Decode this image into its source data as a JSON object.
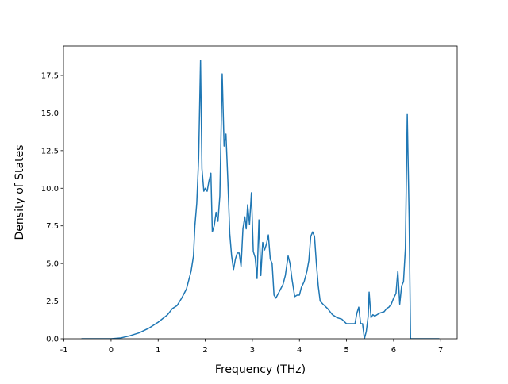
{
  "chart_data": {
    "type": "line",
    "x_label": "Frequency (THz)",
    "y_label": "Density of States",
    "x": [
      -0.63,
      0,
      0.2,
      0.4,
      0.6,
      0.8,
      1.0,
      1.2,
      1.3,
      1.4,
      1.5,
      1.6,
      1.7,
      1.75,
      1.78,
      1.82,
      1.86,
      1.9,
      1.93,
      1.97,
      2.0,
      2.04,
      2.08,
      2.12,
      2.15,
      2.19,
      2.23,
      2.27,
      2.31,
      2.36,
      2.4,
      2.44,
      2.48,
      2.52,
      2.56,
      2.6,
      2.64,
      2.68,
      2.72,
      2.76,
      2.8,
      2.84,
      2.87,
      2.9,
      2.94,
      2.98,
      3.02,
      3.06,
      3.1,
      3.14,
      3.18,
      3.22,
      3.26,
      3.3,
      3.34,
      3.38,
      3.42,
      3.46,
      3.5,
      3.55,
      3.6,
      3.65,
      3.7,
      3.76,
      3.8,
      3.84,
      3.9,
      3.95,
      4.0,
      4.04,
      4.1,
      4.16,
      4.2,
      4.24,
      4.28,
      4.32,
      4.36,
      4.4,
      4.44,
      4.5,
      4.6,
      4.7,
      4.8,
      4.9,
      5.0,
      5.1,
      5.18,
      5.22,
      5.26,
      5.3,
      5.34,
      5.38,
      5.42,
      5.46,
      5.48,
      5.52,
      5.56,
      5.6,
      5.65,
      5.7,
      5.8,
      5.85,
      5.9,
      5.95,
      6.0,
      6.05,
      6.09,
      6.13,
      6.17,
      6.21,
      6.25,
      6.29,
      6.33,
      6.36,
      6.97
    ],
    "series": [
      {
        "color": "#1f77b4",
        "values": [
          0,
          0,
          0.05,
          0.2,
          0.4,
          0.7,
          1.1,
          1.6,
          2.0,
          2.2,
          2.7,
          3.3,
          4.5,
          5.5,
          7.5,
          9.0,
          12.0,
          18.5,
          11.3,
          9.8,
          10.0,
          9.8,
          10.5,
          11.0,
          7.1,
          7.5,
          8.4,
          7.8,
          9.5,
          17.6,
          12.8,
          13.6,
          10.5,
          7.0,
          5.5,
          4.6,
          5.3,
          5.7,
          5.7,
          4.8,
          7.3,
          8.1,
          7.3,
          8.9,
          7.6,
          9.7,
          5.8,
          5.4,
          4.0,
          7.9,
          4.2,
          6.4,
          5.9,
          6.3,
          6.9,
          5.3,
          5.0,
          2.9,
          2.7,
          3.0,
          3.3,
          3.6,
          4.2,
          5.5,
          5.0,
          4.0,
          2.8,
          2.9,
          2.9,
          3.4,
          3.8,
          4.5,
          5.2,
          6.8,
          7.1,
          6.8,
          5.0,
          3.5,
          2.5,
          2.3,
          2.0,
          1.6,
          1.4,
          1.3,
          1.0,
          1.0,
          1.0,
          1.7,
          2.1,
          1.0,
          1.0,
          0,
          0.5,
          1.5,
          3.1,
          1.4,
          1.6,
          1.5,
          1.6,
          1.7,
          1.8,
          2.0,
          2.1,
          2.3,
          2.7,
          3.0,
          4.5,
          2.3,
          3.5,
          3.8,
          6.0,
          14.9,
          8.0,
          0,
          0
        ]
      }
    ],
    "xlim": [
      -1.01,
      7.35
    ],
    "ylim": [
      0,
      19.45
    ],
    "xticks": [
      -1,
      0,
      1,
      2,
      3,
      4,
      5,
      6,
      7
    ],
    "yticks": [
      {
        "value": 0,
        "label": "0.0"
      },
      {
        "value": 2.5,
        "label": "2.5"
      },
      {
        "value": 5,
        "label": "5.0"
      },
      {
        "value": 7.5,
        "label": "7.5"
      },
      {
        "value": 10,
        "label": "10.0"
      },
      {
        "value": 12.5,
        "label": "12.5"
      },
      {
        "value": 15,
        "label": "15.0"
      },
      {
        "value": 17.5,
        "label": "17.5"
      }
    ]
  }
}
